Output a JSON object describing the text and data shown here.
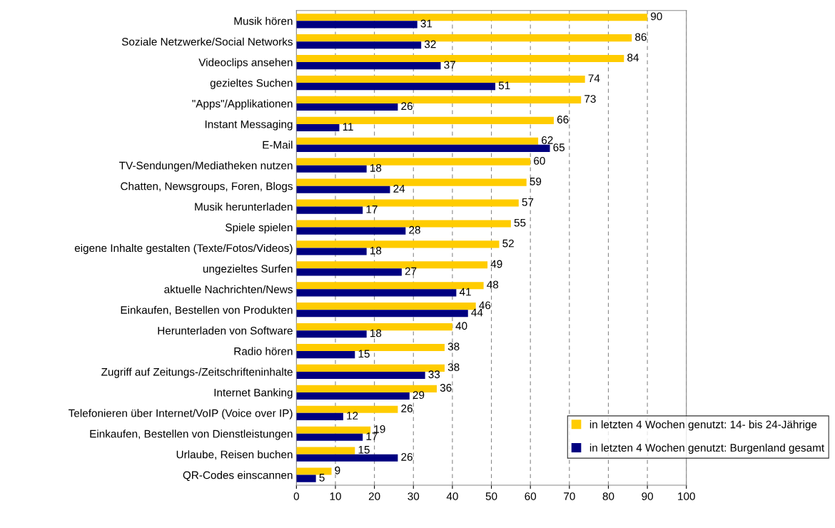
{
  "chart_data": {
    "type": "bar",
    "orientation": "horizontal",
    "categories": [
      "Musik hören",
      "Soziale Netzwerke/Social Networks",
      "Videoclips ansehen",
      "gezieltes Suchen",
      "\"Apps\"/Applikationen",
      "Instant Messaging",
      "E-Mail",
      "TV-Sendungen/Mediatheken nutzen",
      "Chatten, Newsgroups, Foren, Blogs",
      "Musik herunterladen",
      "Spiele spielen",
      "eigene Inhalte gestalten (Texte/Fotos/Videos)",
      "ungezieltes Surfen",
      "aktuelle Nachrichten/News",
      "Einkaufen, Bestellen von Produkten",
      "Herunterladen von Software",
      "Radio hören",
      "Zugriff auf Zeitungs-/Zeitschrifteninhalte",
      "Internet Banking",
      "Telefonieren über Internet/VoIP (Voice over IP)",
      "Einkaufen, Bestellen von Dienstleistungen",
      "Urlaube, Reisen buchen",
      "QR-Codes einscannen"
    ],
    "series": [
      {
        "name": "in letzten 4 Wochen genutzt: 14- bis 24-Jährige",
        "color": "#ffcc00",
        "values": [
          90,
          86,
          84,
          74,
          73,
          66,
          62,
          60,
          59,
          57,
          55,
          52,
          49,
          48,
          46,
          40,
          38,
          38,
          36,
          26,
          19,
          15,
          9
        ]
      },
      {
        "name": "in letzten 4 Wochen genutzt: Burgenland gesamt",
        "color": "#000080",
        "values": [
          31,
          32,
          37,
          51,
          26,
          11,
          65,
          18,
          24,
          17,
          28,
          18,
          27,
          41,
          44,
          18,
          15,
          33,
          29,
          12,
          17,
          26,
          5
        ]
      }
    ],
    "xlim": [
      0,
      100
    ],
    "xticks": [
      0,
      10,
      20,
      30,
      40,
      50,
      60,
      70,
      80,
      90,
      100
    ],
    "grid": "x",
    "legend": "bottom right",
    "data_labels": true
  }
}
